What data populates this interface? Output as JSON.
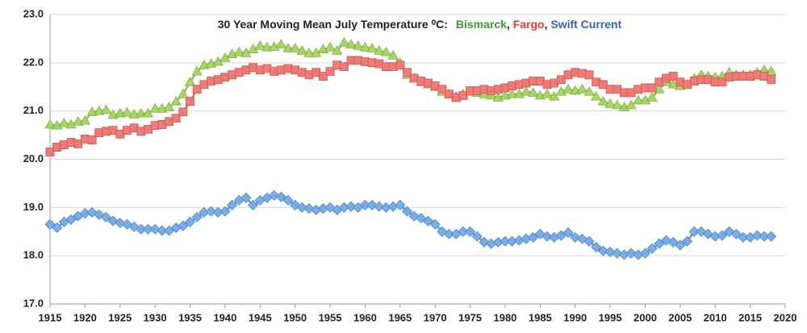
{
  "chart_data": {
    "type": "line",
    "title": "30 Year Moving Mean July  Temperature ⁰C:",
    "legend_separator": ",",
    "x": [
      1915,
      1916,
      1917,
      1918,
      1919,
      1920,
      1921,
      1922,
      1923,
      1924,
      1925,
      1926,
      1927,
      1928,
      1929,
      1930,
      1931,
      1932,
      1933,
      1934,
      1935,
      1936,
      1937,
      1938,
      1939,
      1940,
      1941,
      1942,
      1943,
      1944,
      1945,
      1946,
      1947,
      1948,
      1949,
      1950,
      1951,
      1952,
      1953,
      1954,
      1955,
      1956,
      1957,
      1958,
      1959,
      1960,
      1961,
      1962,
      1963,
      1964,
      1965,
      1966,
      1967,
      1968,
      1969,
      1970,
      1971,
      1972,
      1973,
      1974,
      1975,
      1976,
      1977,
      1978,
      1979,
      1980,
      1981,
      1982,
      1983,
      1984,
      1985,
      1986,
      1987,
      1988,
      1989,
      1990,
      1991,
      1992,
      1993,
      1994,
      1995,
      1996,
      1997,
      1998,
      1999,
      2000,
      2001,
      2002,
      2003,
      2004,
      2005,
      2006,
      2007,
      2008,
      2009,
      2010,
      2011,
      2012,
      2013,
      2014,
      2015,
      2016,
      2017,
      2018
    ],
    "series": [
      {
        "name": "Bismarck",
        "color": "#a8d468",
        "stroke": "#7fb23e",
        "text_color": "#3f9a35",
        "marker": "triangle",
        "values": [
          20.72,
          20.7,
          20.75,
          20.72,
          20.78,
          20.8,
          20.98,
          21.0,
          21.02,
          20.92,
          20.95,
          20.97,
          20.93,
          20.95,
          20.95,
          21.05,
          21.05,
          21.08,
          21.2,
          21.35,
          21.6,
          21.82,
          21.95,
          21.98,
          22.02,
          22.1,
          22.18,
          22.22,
          22.2,
          22.28,
          22.35,
          22.32,
          22.33,
          22.38,
          22.3,
          22.3,
          22.25,
          22.2,
          22.2,
          22.28,
          22.32,
          22.25,
          22.42,
          22.38,
          22.35,
          22.32,
          22.3,
          22.25,
          22.22,
          22.15,
          22.0,
          21.75,
          21.68,
          21.6,
          21.55,
          21.5,
          21.4,
          21.35,
          21.3,
          21.35,
          21.4,
          21.38,
          21.35,
          21.32,
          21.28,
          21.32,
          21.35,
          21.35,
          21.4,
          21.38,
          21.32,
          21.35,
          21.3,
          21.4,
          21.45,
          21.42,
          21.45,
          21.4,
          21.3,
          21.2,
          21.15,
          21.12,
          21.08,
          21.12,
          21.22,
          21.22,
          21.28,
          21.45,
          21.6,
          21.55,
          21.52,
          21.55,
          21.68,
          21.75,
          21.72,
          21.7,
          21.72,
          21.8,
          21.75,
          21.75,
          21.75,
          21.8,
          21.85,
          21.82
        ]
      },
      {
        "name": "Fargo",
        "color": "#ec7c78",
        "stroke": "#d8504c",
        "text_color": "#e23b3b",
        "marker": "square",
        "values": [
          20.15,
          20.25,
          20.3,
          20.35,
          20.32,
          20.42,
          20.4,
          20.55,
          20.58,
          20.6,
          20.52,
          20.6,
          20.65,
          20.58,
          20.62,
          20.7,
          20.72,
          20.78,
          20.85,
          20.98,
          21.2,
          21.45,
          21.55,
          21.62,
          21.65,
          21.7,
          21.75,
          21.8,
          21.85,
          21.9,
          21.85,
          21.88,
          21.82,
          21.85,
          21.88,
          21.85,
          21.8,
          21.75,
          21.8,
          21.72,
          21.82,
          21.95,
          21.92,
          22.05,
          22.05,
          22.02,
          22.0,
          21.98,
          21.92,
          21.92,
          21.95,
          21.8,
          21.68,
          21.62,
          21.58,
          21.52,
          21.45,
          21.35,
          21.28,
          21.32,
          21.42,
          21.42,
          21.45,
          21.42,
          21.45,
          21.48,
          21.52,
          21.55,
          21.58,
          21.62,
          21.62,
          21.55,
          21.58,
          21.65,
          21.75,
          21.8,
          21.78,
          21.75,
          21.6,
          21.55,
          21.45,
          21.45,
          21.38,
          21.38,
          21.45,
          21.48,
          21.48,
          21.6,
          21.68,
          21.72,
          21.6,
          21.55,
          21.62,
          21.65,
          21.65,
          21.6,
          21.6,
          21.7,
          21.72,
          21.72,
          21.72,
          21.75,
          21.72,
          21.65
        ]
      },
      {
        "name": "Swift Current",
        "color": "#78aee4",
        "stroke": "#4d86c8",
        "text_color": "#3d5fb0",
        "marker": "diamond",
        "values": [
          18.65,
          18.58,
          18.7,
          18.75,
          18.82,
          18.88,
          18.9,
          18.85,
          18.8,
          18.72,
          18.68,
          18.65,
          18.6,
          18.55,
          18.55,
          18.55,
          18.52,
          18.52,
          18.58,
          18.62,
          18.7,
          18.8,
          18.9,
          18.92,
          18.9,
          18.92,
          19.05,
          19.15,
          19.2,
          19.05,
          19.15,
          19.2,
          19.25,
          19.22,
          19.15,
          19.05,
          19.0,
          18.98,
          18.95,
          18.98,
          19.0,
          18.95,
          19.0,
          19.02,
          19.0,
          19.05,
          19.05,
          19.02,
          19.0,
          19.02,
          19.05,
          18.92,
          18.82,
          18.78,
          18.72,
          18.65,
          18.5,
          18.45,
          18.45,
          18.5,
          18.5,
          18.4,
          18.28,
          18.25,
          18.28,
          18.3,
          18.3,
          18.32,
          18.35,
          18.38,
          18.45,
          18.4,
          18.38,
          18.42,
          18.48,
          18.38,
          18.35,
          18.3,
          18.18,
          18.1,
          18.08,
          18.05,
          18.02,
          18.05,
          18.02,
          18.05,
          18.15,
          18.25,
          18.32,
          18.28,
          18.22,
          18.3,
          18.5,
          18.5,
          18.45,
          18.4,
          18.42,
          18.5,
          18.45,
          18.38,
          18.38,
          18.42,
          18.4,
          18.4
        ]
      }
    ],
    "xlim": [
      1915,
      2020
    ],
    "xticks": [
      1915,
      1920,
      1925,
      1930,
      1935,
      1940,
      1945,
      1950,
      1955,
      1960,
      1965,
      1970,
      1975,
      1980,
      1985,
      1990,
      1995,
      2000,
      2005,
      2010,
      2015,
      2020
    ],
    "ylim": [
      17,
      23
    ],
    "yticks": [
      {
        "value": 17,
        "label": "17.0"
      },
      {
        "value": 18,
        "label": "18.0"
      },
      {
        "value": 19,
        "label": "19.0"
      },
      {
        "value": 20,
        "label": "20.0"
      },
      {
        "value": 21,
        "label": "21.0"
      },
      {
        "value": 22,
        "label": "22.0"
      },
      {
        "value": 23,
        "label": "23.0"
      }
    ],
    "grid": true
  }
}
